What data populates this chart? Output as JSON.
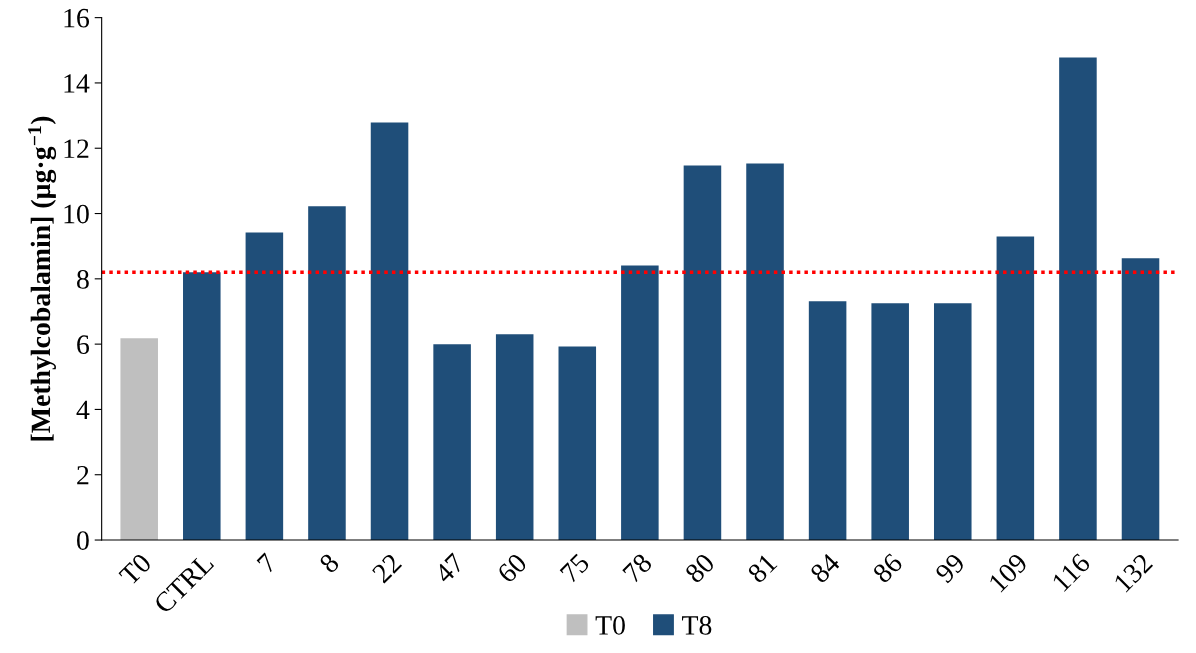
{
  "chart_data": {
    "type": "bar",
    "ylabel": "[Methylcobalamin] (µg·g$^{−1}$)",
    "categories": [
      "T0",
      "CTRL",
      "7",
      "8",
      "22",
      "47",
      "60",
      "75",
      "78",
      "80",
      "81",
      "84",
      "86",
      "99",
      "109",
      "116",
      "132"
    ],
    "series": [
      {
        "name": "T0",
        "color": "#bfbfbf",
        "values": [
          6.18,
          null,
          null,
          null,
          null,
          null,
          null,
          null,
          null,
          null,
          null,
          null,
          null,
          null,
          null,
          null,
          null
        ]
      },
      {
        "name": "T8",
        "color": "#1f4e79",
        "values": [
          null,
          8.2,
          9.42,
          10.22,
          12.79,
          6.0,
          6.3,
          5.93,
          8.41,
          11.47,
          11.53,
          7.31,
          7.25,
          7.25,
          9.3,
          14.78,
          8.63
        ]
      }
    ],
    "ylim": [
      0,
      16
    ],
    "yticks": [
      0,
      2,
      4,
      6,
      8,
      10,
      12,
      14,
      16
    ],
    "ref_lines": [
      {
        "axis": "y",
        "value": 8.2,
        "color": "#ff0000",
        "line_style": "dotted"
      }
    ],
    "legend": "bottom",
    "grid": false
  }
}
